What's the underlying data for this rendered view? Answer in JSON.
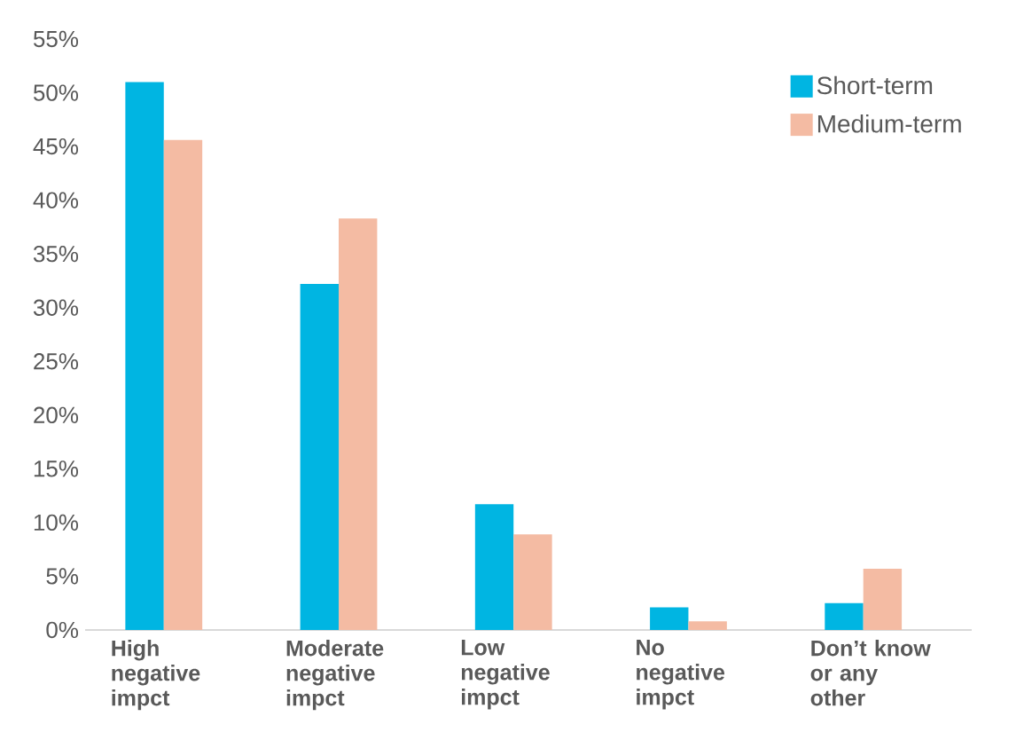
{
  "chart_data": {
    "type": "bar",
    "categories": [
      "High negative impct",
      "Moderate negative impct",
      "Low negative impct",
      "No negative impct",
      "Don’t know or any other"
    ],
    "series": [
      {
        "name": "Short-term",
        "color": "#00b5e2",
        "values": [
          51.0,
          32.2,
          11.7,
          2.1,
          2.5
        ]
      },
      {
        "name": "Medium-term",
        "color": "#f4bba3",
        "values": [
          45.6,
          38.3,
          8.9,
          0.8,
          5.7
        ]
      }
    ],
    "ylim": [
      0,
      55
    ],
    "yticks": [
      {
        "value": 0,
        "label": "0%"
      },
      {
        "value": 5,
        "label": "5%"
      },
      {
        "value": 10,
        "label": "10%"
      },
      {
        "value": 15,
        "label": "15%"
      },
      {
        "value": 20,
        "label": "20%"
      },
      {
        "value": 25,
        "label": "25%"
      },
      {
        "value": 30,
        "label": "30%"
      },
      {
        "value": 35,
        "label": "35%"
      },
      {
        "value": 40,
        "label": "40%"
      },
      {
        "value": 45,
        "label": "45%"
      },
      {
        "value": 50,
        "label": "50%"
      },
      {
        "value": 55,
        "label": "55%"
      }
    ],
    "legend": "top right"
  }
}
